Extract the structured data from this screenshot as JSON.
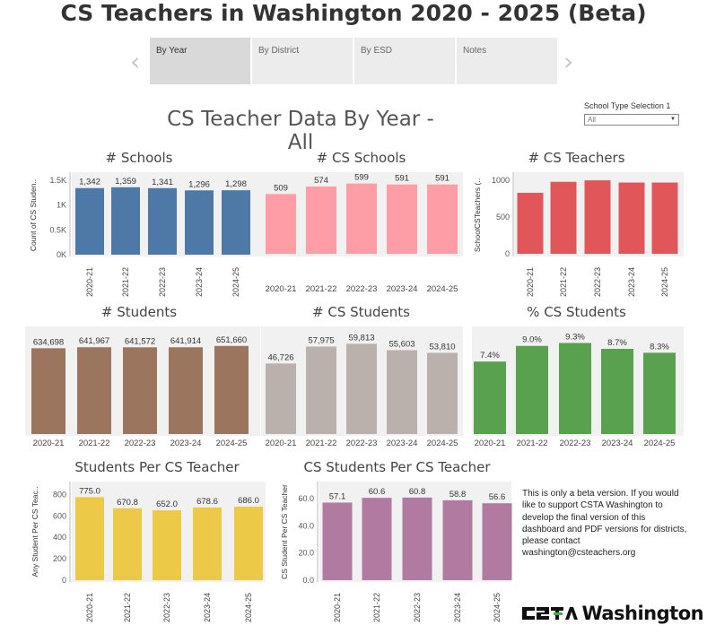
{
  "page_title": "CS Teachers in Washington 2020 - 2025 (Beta)",
  "tabs": [
    {
      "label": "By Year",
      "active": true
    },
    {
      "label": "By District",
      "active": false
    },
    {
      "label": "By ESD",
      "active": false
    },
    {
      "label": "Notes",
      "active": false
    }
  ],
  "nav": {
    "prev_icon": "chevron-left",
    "next_icon": "chevron-right"
  },
  "subtitle": "CS Teacher Data By Year - All",
  "filter": {
    "label": "School Type Selection 1",
    "value": "All"
  },
  "note": "This is only a beta version.   If you would like to support CSTA Washington to develop the final version of this dashboard and PDF versions for districts, please contact washington@csteachers.org",
  "logo": {
    "text": "Washington",
    "mark": "CSTA"
  },
  "colors": {
    "schools": "#4e79a7",
    "cs_schools": "#ff9da7",
    "cs_teachers": "#e15759",
    "students": "#9c755f",
    "cs_students": "#bab0ac",
    "pct_cs": "#59a14f",
    "per_teacher": "#edc948",
    "cs_per_teacher": "#b07aa1"
  },
  "chart_data": [
    {
      "id": "schools",
      "type": "bar",
      "title": "# Schools",
      "ylabel": "Count of CS Studen..",
      "categories": [
        "2020-21",
        "2021-22",
        "2022-23",
        "2023-24",
        "2024-25"
      ],
      "values": [
        1342,
        1359,
        1341,
        1296,
        1298
      ],
      "labels": [
        "1,342",
        "1,359",
        "1,341",
        "1,296",
        "1,298"
      ],
      "yticks": [
        "1.5K",
        "1K",
        "0.5K",
        "0K"
      ],
      "ytick_values": [
        1500,
        1000,
        500,
        0
      ],
      "ylim": [
        0,
        1500
      ],
      "x_rotated": true
    },
    {
      "id": "cs_schools",
      "type": "bar",
      "title": "# CS Schools",
      "ylabel": "",
      "categories": [
        "2020-21",
        "2021-22",
        "2022-23",
        "2023-24",
        "2024-25"
      ],
      "values": [
        509,
        574,
        599,
        591,
        591
      ],
      "labels": [
        "509",
        "574",
        "599",
        "591",
        "591"
      ],
      "ylim": [
        0,
        650
      ],
      "x_rotated": false
    },
    {
      "id": "cs_teachers",
      "type": "bar",
      "title": "# CS Teachers",
      "ylabel": "SchoolCSTeachers (..",
      "categories": [
        "2020-21",
        "2021-22",
        "2022-23",
        "2023-24",
        "2024-25"
      ],
      "values": [
        830,
        980,
        1000,
        970,
        970
      ],
      "yticks": [
        "1000",
        "500",
        "0"
      ],
      "ytick_values": [
        1000,
        500,
        0
      ],
      "ylim": [
        0,
        1050
      ],
      "x_rotated": true
    },
    {
      "id": "students",
      "type": "bar",
      "title": "# Students",
      "ylabel": "",
      "categories": [
        "2020-21",
        "2021-22",
        "2022-23",
        "2023-24",
        "2024-25"
      ],
      "values": [
        634698,
        641967,
        641572,
        641914,
        651660
      ],
      "labels": [
        "634,698",
        "641,967",
        "641,572",
        "641,914",
        "651,660"
      ],
      "ylim": [
        0,
        690000
      ],
      "x_rotated": false
    },
    {
      "id": "cs_students",
      "type": "bar",
      "title": "# CS Students",
      "ylabel": "",
      "categories": [
        "2020-21",
        "2021-22",
        "2022-23",
        "2023-24",
        "2024-25"
      ],
      "values": [
        46726,
        57975,
        59813,
        55603,
        53810
      ],
      "labels": [
        "46,726",
        "57,975",
        "59,813",
        "55,603",
        "53,810"
      ],
      "ylim": [
        0,
        63000
      ],
      "x_rotated": false
    },
    {
      "id": "pct_cs",
      "type": "bar",
      "title": "% CS Students",
      "ylabel": "",
      "categories": [
        "2020-21",
        "2021-22",
        "2022-23",
        "2023-24",
        "2024-25"
      ],
      "values": [
        7.4,
        9.0,
        9.3,
        8.7,
        8.3
      ],
      "labels": [
        "7.4%",
        "9.0%",
        "9.3%",
        "8.7%",
        "8.3%"
      ],
      "ylim": [
        0,
        9.8
      ],
      "x_rotated": false
    },
    {
      "id": "per_teacher",
      "type": "bar",
      "title": "Students Per CS Teacher",
      "ylabel": "Any Student Per CS Teac..",
      "categories": [
        "2020-21",
        "2021-22",
        "2022-23",
        "2023-24",
        "2024-25"
      ],
      "values": [
        775.0,
        670.8,
        652.0,
        678.6,
        686.0
      ],
      "labels": [
        "775.0",
        "670.8",
        "652.0",
        "678.6",
        "686.0"
      ],
      "yticks": [
        "800",
        "600",
        "400",
        "200",
        "0"
      ],
      "ytick_values": [
        800,
        600,
        400,
        200,
        0
      ],
      "ylim": [
        0,
        820
      ],
      "x_rotated": true
    },
    {
      "id": "cs_per_teacher",
      "type": "bar",
      "title": "CS Students Per CS Teacher",
      "ylabel": "CS Student Per CS Teacher",
      "categories": [
        "2020-21",
        "2021-22",
        "2022-23",
        "2023-24",
        "2024-25"
      ],
      "values": [
        57.1,
        60.6,
        60.8,
        58.8,
        56.6
      ],
      "labels": [
        "57.1",
        "60.6",
        "60.8",
        "58.8",
        "56.6"
      ],
      "yticks": [
        "60.0",
        "40.0",
        "20.0",
        "0.0"
      ],
      "ytick_values": [
        60,
        40,
        20,
        0
      ],
      "ylim": [
        0,
        64
      ],
      "x_rotated": true
    }
  ]
}
